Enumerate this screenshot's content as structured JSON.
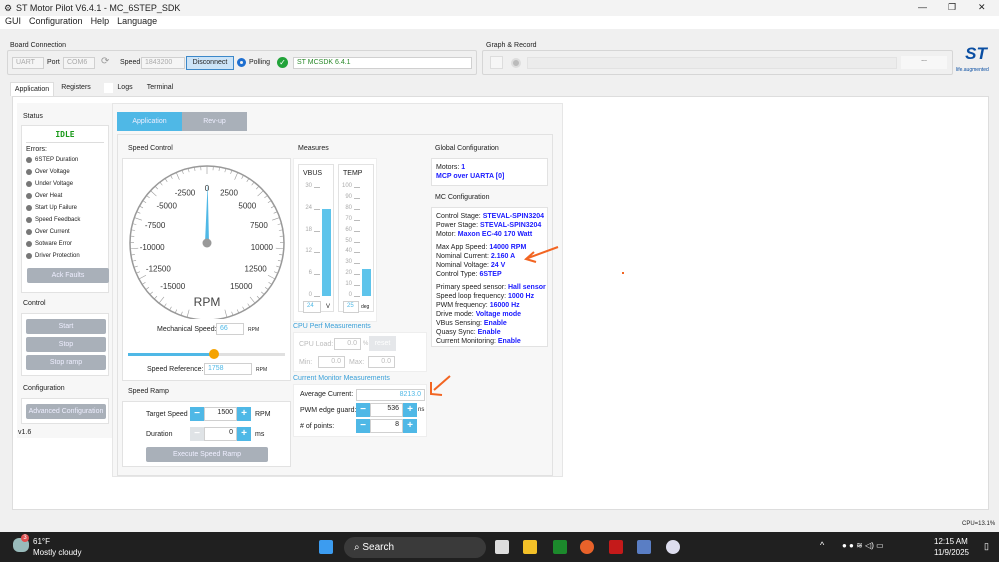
{
  "window": {
    "title": "ST Motor Pilot V6.4.1 - MC_6STEP_SDK"
  },
  "menu": [
    "GUI",
    "Configuration",
    "Help",
    "Language"
  ],
  "board": {
    "title": "Board Connection",
    "protocol": "UART",
    "port_label": "Port",
    "port": "COM6",
    "speed_label": "Speed",
    "speed": "1843200",
    "disconnect": "Disconnect",
    "polling": "Polling",
    "firmware": "ST MCSDK 6.4.1"
  },
  "graph": {
    "title": "Graph & Record",
    "more": "...",
    "logo_tag": "life.augmented"
  },
  "tabs": [
    "Application",
    "Registers",
    "Logs",
    "Terminal"
  ],
  "status": {
    "title": "Status",
    "state": "IDLE",
    "errors_label": "Errors:",
    "errors": [
      "6STEP Duration",
      "Over Voltage",
      "Under Voltage",
      "Over Heat",
      "Start Up Failure",
      "Speed Feedback",
      "Over Current",
      "Sotware Error",
      "Driver Protection"
    ],
    "ack": "Ack Faults",
    "control_title": "Control",
    "start": "Start",
    "stop": "Stop",
    "stop_ramp": "Stop ramp",
    "config_title": "Configuration",
    "adv": "Advanced Configuration",
    "version": "v1.6"
  },
  "subtabs": [
    "Application",
    "Rev-up"
  ],
  "speed_control": {
    "title": "Speed Control",
    "gauge_labels": [
      "-15000",
      "-12500",
      "-10000",
      "-7500",
      "-5000",
      "-2500",
      "0",
      "2500",
      "5000",
      "7500",
      "10000",
      "12500",
      "15000"
    ],
    "gauge_min": -17500,
    "gauge_max": 17500,
    "needle_value": 66,
    "unit": "RPM",
    "mech_label": "Mechanical Speed:",
    "mech_value": "66",
    "mech_unit": "RPM",
    "slider_fraction": 0.55,
    "ref_label": "Speed Reference:",
    "ref_value": "1758",
    "ref_unit": "RPM"
  },
  "speed_ramp": {
    "title": "Speed Ramp",
    "target_label": "Target Speed",
    "target": "1500",
    "target_unit": "RPM",
    "duration_label": "Duration",
    "duration": "0",
    "duration_unit": "ms",
    "execute": "Execute Speed Ramp"
  },
  "measures": {
    "title": "Measures",
    "vbus": {
      "label": "VBUS",
      "ticks": [
        "30",
        "24",
        "18",
        "12",
        "6",
        "0"
      ],
      "max": 30,
      "value": "24",
      "unit": "V"
    },
    "temp": {
      "label": "TEMP",
      "ticks": [
        "100",
        "90",
        "80",
        "70",
        "60",
        "50",
        "40",
        "30",
        "20",
        "10",
        "0"
      ],
      "max": 100,
      "value": "25",
      "unit": "deg"
    }
  },
  "cpu": {
    "title": "CPU Perf Measurements",
    "load_label": "CPU Load:",
    "load": "0.0",
    "pct": "%",
    "reset": "reset",
    "min_label": "Min:",
    "min": "0.0",
    "max_label": "Max:",
    "max": "0.0"
  },
  "current": {
    "title": "Current Monitor Measurements",
    "avg_label": "Average Current:",
    "avg": "8213.0",
    "guard_label": "PWM edge guard:",
    "guard": "536",
    "guard_unit": "ns",
    "points_label": "# of points:",
    "points": "8"
  },
  "global": {
    "title": "Global Configuration",
    "motors_label": "Motors:",
    "motors": "1",
    "mcp": "MCP over UARTA [0]"
  },
  "mc": {
    "title": "MC Configuration",
    "rows": [
      [
        "Control Stage:",
        "STEVAL-SPIN3204"
      ],
      [
        "Power Stage:",
        "STEVAL-SPIN3204"
      ],
      [
        "Motor:",
        "Maxon EC-40 170 Watt"
      ],
      [
        "Max App Speed:",
        "14000 RPM"
      ],
      [
        "Nominal Current:",
        "2.160 A"
      ],
      [
        "Nominal Voltage:",
        "24 V"
      ],
      [
        "Control Type:",
        "6STEP"
      ],
      [
        "Primary speed sensor:",
        "Hall sensor"
      ],
      [
        "Speed loop frequency:",
        "1000 Hz"
      ],
      [
        "PWM frequency:",
        "16000 Hz"
      ],
      [
        "Drive mode:",
        "Voltage mode"
      ],
      [
        "VBus Sensing:",
        "Enable"
      ],
      [
        "Quasy Sync:",
        "Enable"
      ],
      [
        "Current Monitoring:",
        "Enable"
      ]
    ]
  },
  "statusbar": {
    "cpu": "CPU=13.1%"
  },
  "taskbar": {
    "temp": "61°F",
    "weather": "Mostly cloudy",
    "search": "Search",
    "time": "12:15 AM",
    "date": "11/9/2025",
    "badge": "3"
  },
  "colors": {
    "accent": "#4fb8e6",
    "value_blue": "#1a1aff",
    "annotation": "#f26522"
  }
}
